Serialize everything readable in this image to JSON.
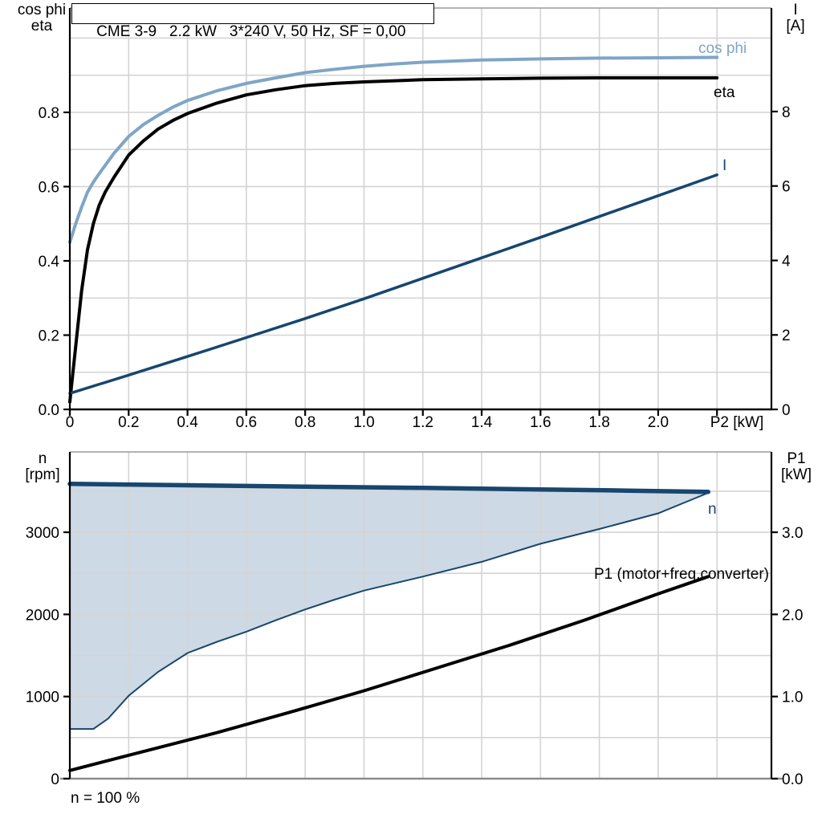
{
  "panel": {
    "note": "n = 100 %"
  },
  "chart_data": [
    {
      "type": "line",
      "title": "CME 3-9   2.2 kW   3*240 V, 50 Hz, SF = 0,00",
      "xlabel": "P2 [kW]",
      "x_tick_labels": [
        "0",
        "0.2",
        "0.4",
        "0.6",
        "0.8",
        "1.0",
        "1.2",
        "1.4",
        "1.6",
        "1.8",
        "2.0"
      ],
      "x_ticks": [
        0,
        0.2,
        0.4,
        0.6,
        0.8,
        1.0,
        1.2,
        1.4,
        1.6,
        1.8,
        2.0
      ],
      "xlim": [
        0,
        2.385
      ],
      "grid": true,
      "y_left": {
        "title_lines": "cos phi\neta",
        "lim": [
          0,
          1.081
        ],
        "ticks": [
          0,
          0.2,
          0.4,
          0.6,
          0.8
        ],
        "tick_labels": [
          "0.0",
          "0.2",
          "0.4",
          "0.6",
          "0.8"
        ],
        "grid_step": 0.1
      },
      "y_right": {
        "title_lines": "I\n[A]",
        "lim": [
          0,
          10.78
        ],
        "ticks": [
          0,
          2,
          4,
          6,
          8
        ],
        "tick_labels": [
          "0",
          "2",
          "4",
          "6",
          "8"
        ]
      },
      "series": [
        {
          "name": "cos phi",
          "axis": "left",
          "color": "#7FA5C6",
          "width": 4,
          "points": [
            [
              0,
              0.45
            ],
            [
              0.02,
              0.5
            ],
            [
              0.04,
              0.545
            ],
            [
              0.06,
              0.585
            ],
            [
              0.08,
              0.612
            ],
            [
              0.1,
              0.635
            ],
            [
              0.15,
              0.69
            ],
            [
              0.2,
              0.735
            ],
            [
              0.25,
              0.767
            ],
            [
              0.3,
              0.792
            ],
            [
              0.35,
              0.814
            ],
            [
              0.4,
              0.832
            ],
            [
              0.5,
              0.858
            ],
            [
              0.6,
              0.878
            ],
            [
              0.7,
              0.893
            ],
            [
              0.8,
              0.907
            ],
            [
              0.9,
              0.916
            ],
            [
              1.0,
              0.924
            ],
            [
              1.1,
              0.93
            ],
            [
              1.2,
              0.935
            ],
            [
              1.4,
              0.941
            ],
            [
              1.6,
              0.944
            ],
            [
              1.8,
              0.946
            ],
            [
              2.0,
              0.947
            ],
            [
              2.2,
              0.948
            ]
          ]
        },
        {
          "name": "eta",
          "axis": "left",
          "color": "#000000",
          "width": 4,
          "points": [
            [
              0,
              0.02
            ],
            [
              0.02,
              0.17
            ],
            [
              0.04,
              0.32
            ],
            [
              0.06,
              0.43
            ],
            [
              0.08,
              0.5
            ],
            [
              0.1,
              0.55
            ],
            [
              0.12,
              0.585
            ],
            [
              0.15,
              0.625
            ],
            [
              0.2,
              0.685
            ],
            [
              0.25,
              0.723
            ],
            [
              0.3,
              0.755
            ],
            [
              0.35,
              0.778
            ],
            [
              0.4,
              0.797
            ],
            [
              0.5,
              0.825
            ],
            [
              0.6,
              0.847
            ],
            [
              0.7,
              0.861
            ],
            [
              0.8,
              0.872
            ],
            [
              0.9,
              0.878
            ],
            [
              1.0,
              0.882
            ],
            [
              1.2,
              0.888
            ],
            [
              1.4,
              0.89
            ],
            [
              1.6,
              0.892
            ],
            [
              1.8,
              0.893
            ],
            [
              2.0,
              0.893
            ],
            [
              2.2,
              0.893
            ]
          ]
        },
        {
          "name": "I",
          "axis": "right",
          "color": "#17466F",
          "width": 3.5,
          "points": [
            [
              0,
              0.43
            ],
            [
              0.2,
              0.92
            ],
            [
              0.4,
              1.42
            ],
            [
              0.6,
              1.93
            ],
            [
              0.8,
              2.44
            ],
            [
              1.0,
              2.97
            ],
            [
              1.2,
              3.52
            ],
            [
              1.4,
              4.07
            ],
            [
              1.6,
              4.62
            ],
            [
              1.8,
              5.18
            ],
            [
              2.0,
              5.74
            ],
            [
              2.2,
              6.3
            ]
          ]
        }
      ],
      "curve_labels": [
        {
          "text": "cos phi",
          "x": 870,
          "y": 66,
          "color": "#7FA5C6",
          "anchor": "start"
        },
        {
          "text": "eta",
          "x": 889,
          "y": 121,
          "color": "#000000",
          "anchor": "start"
        },
        {
          "text": "I",
          "x": 900,
          "y": 212,
          "color": "#17466F",
          "anchor": "start"
        }
      ]
    },
    {
      "type": "line",
      "title": "",
      "xlabel": "",
      "x_ticks": [],
      "x_tick_labels": [],
      "xlim": [
        0,
        2.385
      ],
      "grid": true,
      "note": "n = 100 %",
      "y_left": {
        "title_lines": "n\n[rpm]",
        "lim": [
          0,
          3978
        ],
        "ticks": [
          0,
          1000,
          2000,
          3000
        ],
        "tick_labels": [
          "0",
          "1000",
          "2000",
          "3000"
        ],
        "grid_step": 500
      },
      "y_right": {
        "title_lines": "P1\n[kW]",
        "lim": [
          0,
          3.978
        ],
        "ticks": [
          0,
          1,
          2,
          3
        ],
        "tick_labels": [
          "0.0",
          "1.0",
          "2.0",
          "3.0"
        ]
      },
      "fill_region": {
        "name": "speed-control-range",
        "fill_color": "#CDD9E5",
        "border_color": "#17466F",
        "upper_points_rpm": [
          [
            0,
            3590
          ],
          [
            0.4,
            3572
          ],
          [
            0.8,
            3556
          ],
          [
            1.2,
            3540
          ],
          [
            1.6,
            3522
          ],
          [
            1.9,
            3507
          ],
          [
            2.17,
            3491
          ]
        ],
        "lower_points_rpm": [
          [
            0,
            605
          ],
          [
            0.08,
            605
          ],
          [
            0.13,
            730
          ],
          [
            0.2,
            1010
          ],
          [
            0.3,
            1300
          ],
          [
            0.4,
            1530
          ],
          [
            0.5,
            1665
          ],
          [
            0.6,
            1790
          ],
          [
            0.7,
            1928
          ],
          [
            0.8,
            2060
          ],
          [
            0.9,
            2180
          ],
          [
            1.0,
            2290
          ],
          [
            1.2,
            2460
          ],
          [
            1.4,
            2640
          ],
          [
            1.6,
            2860
          ],
          [
            1.8,
            3040
          ],
          [
            2.0,
            3230
          ],
          [
            2.17,
            3480
          ]
        ]
      },
      "series": [
        {
          "name": "n",
          "axis": "left",
          "color": "#17466F",
          "width": 5.5,
          "points": [
            [
              0,
              3590
            ],
            [
              0.4,
              3572
            ],
            [
              0.8,
              3556
            ],
            [
              1.2,
              3540
            ],
            [
              1.6,
              3522
            ],
            [
              1.9,
              3507
            ],
            [
              2.17,
              3491
            ]
          ]
        },
        {
          "name": "P1 (motor+freq.converter)",
          "axis": "right",
          "color": "#000000",
          "width": 4,
          "points": [
            [
              0,
              0.1
            ],
            [
              0.25,
              0.33
            ],
            [
              0.5,
              0.56
            ],
            [
              0.75,
              0.81
            ],
            [
              1.0,
              1.07
            ],
            [
              1.25,
              1.35
            ],
            [
              1.5,
              1.63
            ],
            [
              1.75,
              1.93
            ],
            [
              2.0,
              2.25
            ],
            [
              2.17,
              2.46
            ]
          ]
        }
      ],
      "curve_labels": [
        {
          "text": "n",
          "x": 882,
          "y": 640,
          "color": "#17466F",
          "anchor": "start"
        },
        {
          "text": "P1 (motor+freq.converter)",
          "x": 958,
          "y": 721,
          "color": "#000000",
          "anchor": "end"
        }
      ]
    }
  ]
}
